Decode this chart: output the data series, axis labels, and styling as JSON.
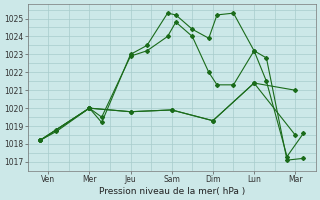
{
  "background_color": "#cce8e8",
  "grid_color": "#a8cccc",
  "line_color": "#1a6b1a",
  "xlabel": "Pression niveau de la mer( hPa )",
  "xlim": [
    0,
    7.0
  ],
  "ylim": [
    1016.5,
    1025.8
  ],
  "yticks": [
    1017,
    1018,
    1019,
    1020,
    1021,
    1022,
    1023,
    1024,
    1025
  ],
  "xtick_labels": [
    "Ven",
    "Mer",
    "Jeu",
    "Sam",
    "Dim",
    "Lun",
    "Mar"
  ],
  "xtick_positions": [
    0.5,
    1.5,
    2.5,
    3.5,
    4.5,
    5.5,
    6.5
  ],
  "lines": [
    {
      "x": [
        0.3,
        0.7,
        1.5,
        1.8,
        2.5,
        2.9,
        3.4,
        3.6,
        4.0,
        4.4,
        4.6,
        5.0,
        5.5,
        5.8,
        6.3,
        6.7
      ],
      "y": [
        1018.2,
        1018.7,
        1020.0,
        1019.2,
        1023.0,
        1023.5,
        1025.3,
        1025.2,
        1024.4,
        1023.9,
        1025.2,
        1025.3,
        1023.2,
        1022.8,
        1017.1,
        1017.2
      ]
    },
    {
      "x": [
        0.3,
        0.7,
        1.5,
        1.8,
        2.5,
        2.9,
        3.4,
        3.6,
        4.0,
        4.4,
        4.6,
        5.0,
        5.5,
        5.8,
        6.3,
        6.7
      ],
      "y": [
        1018.2,
        1018.8,
        1020.0,
        1019.5,
        1022.9,
        1023.2,
        1024.0,
        1024.8,
        1024.0,
        1022.0,
        1021.3,
        1021.3,
        1023.2,
        1021.5,
        1017.3,
        1018.6
      ]
    },
    {
      "x": [
        0.3,
        1.5,
        2.5,
        3.5,
        4.5,
        5.5,
        6.5
      ],
      "y": [
        1018.2,
        1020.0,
        1019.8,
        1019.9,
        1019.3,
        1021.4,
        1021.0
      ]
    },
    {
      "x": [
        0.3,
        1.5,
        2.5,
        3.5,
        4.5,
        5.5,
        6.5
      ],
      "y": [
        1018.2,
        1020.0,
        1019.8,
        1019.9,
        1019.3,
        1021.4,
        1018.5
      ]
    }
  ]
}
